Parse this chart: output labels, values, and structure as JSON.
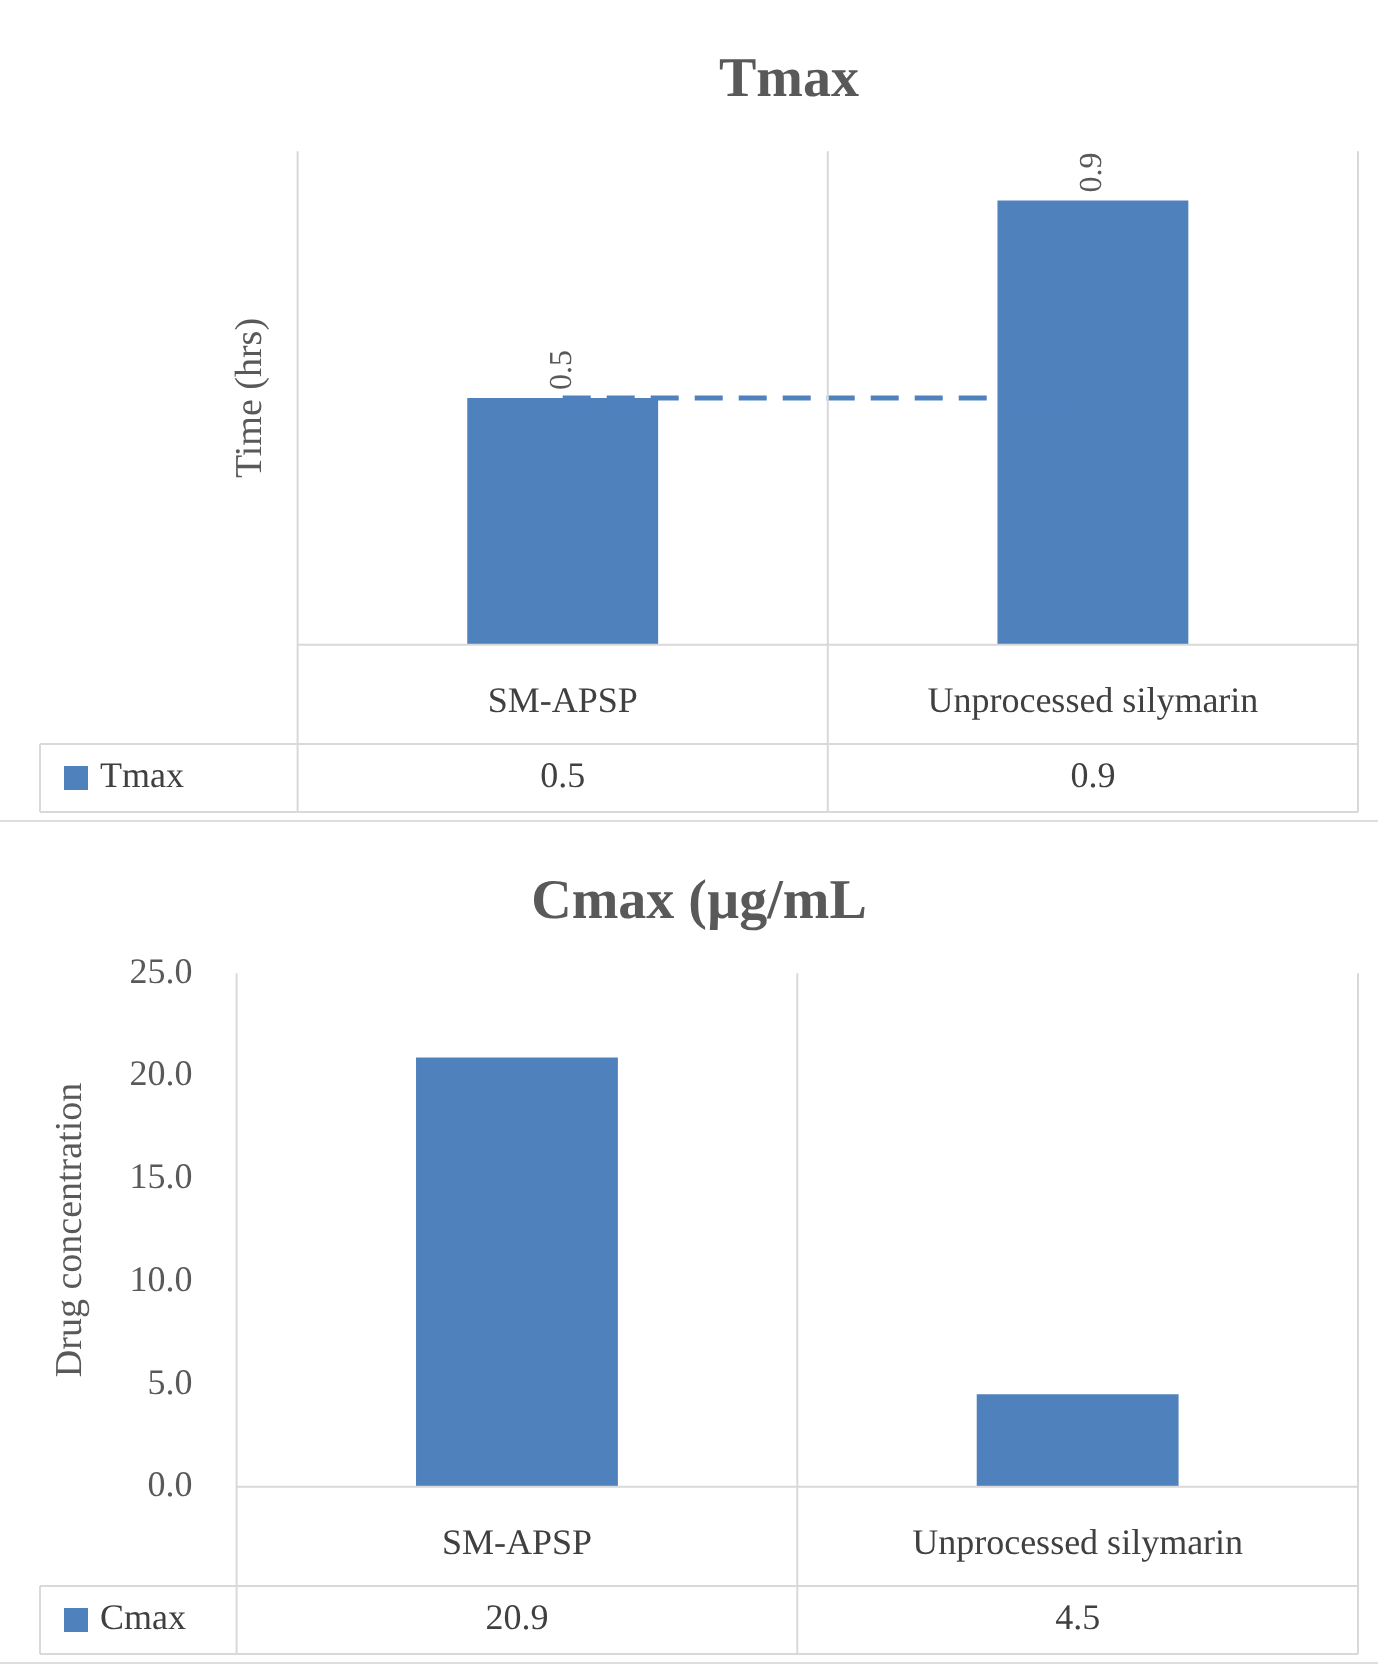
{
  "chart_data": [
    {
      "type": "bar",
      "title": "Tmax",
      "ylabel": "Time (hrs)",
      "categories": [
        "SM-APSP",
        "Unprocessed silymarin"
      ],
      "series": [
        {
          "name": "Tmax",
          "color": "#4f81bd",
          "values": [
            0.5,
            0.9
          ],
          "value_labels": [
            "0.5",
            "0.9"
          ]
        }
      ],
      "ylim": [
        0,
        1
      ],
      "tick_labels": "x",
      "legend": "bottom",
      "grid": "x",
      "ref_lines": [
        {
          "axis": "y",
          "value": 0.5,
          "color": "#4f81bd",
          "line_style": "dashed"
        }
      ]
    },
    {
      "type": "bar",
      "title": "Cmax (µg/mL",
      "ylabel": "Drug concentration",
      "categories": [
        "SM-APSP",
        "Unprocessed silymarin"
      ],
      "series": [
        {
          "name": "Cmax",
          "color": "#4f81bd",
          "values": [
            20.9,
            4.5
          ]
        }
      ],
      "ylim": [
        0,
        25
      ],
      "yticks": [
        {
          "value": 0,
          "label": "0.0"
        },
        {
          "value": 5,
          "label": "5.0"
        },
        {
          "value": 10,
          "label": "10.0"
        },
        {
          "value": 15,
          "label": "15.0"
        },
        {
          "value": 20,
          "label": "20.0"
        },
        {
          "value": 25,
          "label": "25.0"
        }
      ],
      "data_labels": true,
      "legend": "bottom",
      "grid": "x"
    }
  ]
}
